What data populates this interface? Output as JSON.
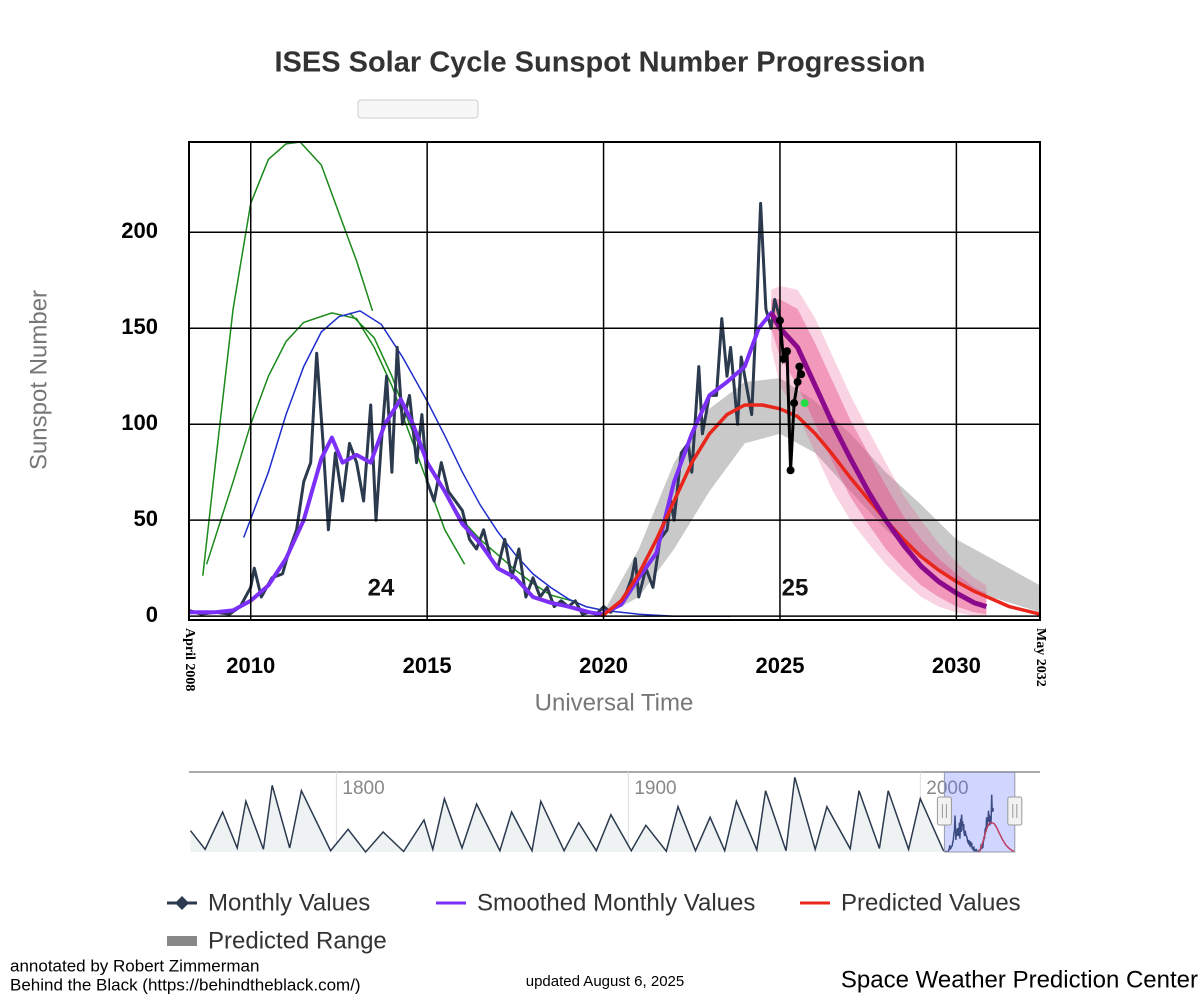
{
  "chart_data": {
    "type": "line",
    "title": "ISES Solar Cycle Sunspot Number Progression",
    "x_label": "Universal Time",
    "y_label": "Sunspot Number",
    "xlim": [
      2008.25,
      2032.37
    ],
    "xlim_labels": [
      "April 2008",
      "May 2032"
    ],
    "ylim": [
      -2,
      247
    ],
    "xticks": [
      2010,
      2015,
      2020,
      2025,
      2030
    ],
    "yticks": [
      0,
      50,
      100,
      150,
      200
    ],
    "grid": true,
    "cycle_labels": [
      "24",
      "25"
    ],
    "series": [
      {
        "name": "Monthly Values",
        "color": "#2b3a4e",
        "x": [
          2008.25,
          2008.6,
          2009.0,
          2009.4,
          2009.7,
          2010.0,
          2010.1,
          2010.3,
          2010.6,
          2010.9,
          2011.1,
          2011.3,
          2011.5,
          2011.7,
          2011.87,
          2012.05,
          2012.2,
          2012.4,
          2012.6,
          2012.8,
          2013.0,
          2013.2,
          2013.4,
          2013.55,
          2013.7,
          2013.85,
          2014.0,
          2014.15,
          2014.3,
          2014.5,
          2014.7,
          2014.85,
          2015.0,
          2015.2,
          2015.4,
          2015.6,
          2015.8,
          2016.0,
          2016.2,
          2016.4,
          2016.6,
          2016.8,
          2017.0,
          2017.2,
          2017.4,
          2017.6,
          2017.8,
          2018.0,
          2018.2,
          2018.4,
          2018.6,
          2018.8,
          2019.0,
          2019.2,
          2019.4,
          2019.6,
          2019.8,
          2020.0,
          2020.2,
          2020.4,
          2020.6,
          2020.8,
          2020.9,
          2021.0,
          2021.2,
          2021.4,
          2021.6,
          2021.8,
          2021.9,
          2022.0,
          2022.2,
          2022.4,
          2022.5,
          2022.7,
          2022.8,
          2023.0,
          2023.2,
          2023.35,
          2023.5,
          2023.6,
          2023.8,
          2023.9,
          2024.0,
          2024.2,
          2024.35,
          2024.45,
          2024.6,
          2024.75,
          2024.85,
          2025.0
        ],
        "values": [
          3,
          1,
          2,
          1,
          5,
          15,
          25,
          10,
          20,
          22,
          35,
          45,
          70,
          80,
          137,
          90,
          45,
          85,
          60,
          90,
          80,
          60,
          110,
          50,
          90,
          125,
          75,
          140,
          100,
          115,
          80,
          105,
          70,
          60,
          80,
          65,
          60,
          55,
          40,
          35,
          45,
          30,
          25,
          40,
          20,
          35,
          10,
          20,
          10,
          15,
          5,
          8,
          5,
          8,
          1,
          2,
          1,
          5,
          2,
          6,
          10,
          20,
          30,
          10,
          25,
          15,
          40,
          45,
          60,
          50,
          85,
          90,
          75,
          130,
          95,
          115,
          115,
          155,
          125,
          140,
          100,
          135,
          125,
          105,
          165,
          215,
          160,
          150,
          165,
          155
        ]
      },
      {
        "name": "Smoothed Monthly Values",
        "color": "#7b2ff7",
        "x": [
          2008.25,
          2009,
          2009.5,
          2010,
          2010.5,
          2011,
          2011.5,
          2012,
          2012.3,
          2012.6,
          2013,
          2013.4,
          2013.8,
          2014.25,
          2014.6,
          2015,
          2015.5,
          2016,
          2016.5,
          2017,
          2017.5,
          2018,
          2018.5,
          2019,
          2019.6,
          2019.95,
          2020.5,
          2021,
          2021.5,
          2022,
          2022.5,
          2023,
          2023.5,
          2024,
          2024.4,
          2024.75,
          2025.0
        ],
        "values": [
          2,
          2,
          3,
          8,
          16,
          30,
          50,
          82,
          93,
          80,
          84,
          80,
          100,
          113,
          100,
          80,
          65,
          48,
          38,
          25,
          20,
          10,
          7,
          5,
          2,
          1,
          6,
          20,
          33,
          70,
          95,
          115,
          122,
          130,
          150,
          158,
          152
        ]
      },
      {
        "name": "Predicted Values",
        "color": "#e8261b",
        "x": [
          2019.95,
          2020.5,
          2021,
          2021.5,
          2022,
          2022.5,
          2023,
          2023.5,
          2024,
          2024.5,
          2025,
          2025.5,
          2026,
          2026.5,
          2027,
          2027.5,
          2028,
          2028.5,
          2029,
          2029.5,
          2030,
          2030.5,
          2031,
          2031.5,
          2032.37
        ],
        "values": [
          0,
          8,
          22,
          40,
          60,
          80,
          95,
          105,
          110,
          110,
          108,
          104,
          95,
          84,
          72,
          61,
          50,
          40,
          31,
          24,
          18,
          13,
          9,
          5,
          1
        ]
      },
      {
        "name": "Predicted Range",
        "color": "#888888",
        "x": [
          2020,
          2021,
          2022,
          2023,
          2024,
          2025,
          2026,
          2027,
          2028,
          2029,
          2030,
          2031,
          2032.37
        ],
        "low": [
          0,
          10,
          35,
          65,
          90,
          95,
          85,
          65,
          45,
          30,
          18,
          10,
          2
        ],
        "high": [
          2,
          35,
          80,
          108,
          122,
          124,
          112,
          95,
          75,
          58,
          40,
          30,
          16
        ]
      }
    ],
    "magenta_prediction": {
      "color": "#8b0a8b",
      "band_color": "#e8508a",
      "x": [
        2024.75,
        2025,
        2025.5,
        2026,
        2026.5,
        2027,
        2027.5,
        2028,
        2028.5,
        2029,
        2029.5,
        2030,
        2030.5,
        2030.85
      ],
      "values": [
        158,
        150,
        140,
        120,
        100,
        82,
        65,
        50,
        37,
        26,
        18,
        12,
        7,
        5
      ],
      "low": [
        150,
        135,
        120,
        100,
        80,
        62,
        48,
        35,
        25,
        16,
        10,
        5,
        2,
        1
      ],
      "high": [
        165,
        165,
        160,
        142,
        122,
        102,
        85,
        68,
        52,
        40,
        30,
        22,
        15,
        12
      ],
      "outer_low": [
        140,
        120,
        105,
        85,
        65,
        50,
        38,
        27,
        18,
        10,
        5,
        2,
        0,
        0
      ],
      "outer_high": [
        170,
        172,
        170,
        155,
        135,
        115,
        97,
        80,
        63,
        50,
        38,
        28,
        20,
        16
      ]
    },
    "annotated_points": {
      "color": "#000000",
      "x": [
        2025.0,
        2025.1,
        2025.2,
        2025.3,
        2025.4,
        2025.5,
        2025.55,
        2025.6
      ],
      "values": [
        154,
        134,
        138,
        76,
        111,
        122,
        130,
        126
      ]
    },
    "latest_point": {
      "color": "#22dd44",
      "x": 2025.7,
      "value": 111
    },
    "annotation_curves": [
      {
        "color": "#1a8a1a",
        "x": [
          2008.64,
          2009,
          2009.5,
          2010,
          2010.5,
          2011,
          2011.4,
          2012,
          2012.5,
          2013,
          2013.45
        ],
        "values": [
          21,
          80,
          160,
          215,
          238,
          246,
          247,
          235,
          210,
          185,
          159
        ]
      },
      {
        "color": "#1a8a1a",
        "x": [
          2008.75,
          2009.5,
          2010,
          2010.5,
          2011,
          2011.5,
          2012.3,
          2013,
          2013.5,
          2014,
          2014.5,
          2015,
          2015.5,
          2016.06
        ],
        "values": [
          27,
          70,
          100,
          125,
          143,
          153,
          158,
          155,
          140,
          120,
          95,
          70,
          45,
          27
        ]
      },
      {
        "color": "#1a8a1a",
        "x": [
          2012.8,
          2013.5,
          2014,
          2014.5,
          2015,
          2015.5,
          2016,
          2016.5,
          2017,
          2017.5,
          2018,
          2018.5,
          2019.1
        ],
        "values": [
          158,
          145,
          125,
          100,
          80,
          65,
          50,
          40,
          32,
          24,
          17,
          11,
          8
        ]
      },
      {
        "color": "#1f2fcc",
        "x": [
          2009.8,
          2010.5,
          2011,
          2011.5,
          2012,
          2012.5,
          2013.1,
          2013.7,
          2014.3,
          2015,
          2015.5,
          2016,
          2016.5,
          2017,
          2017.5,
          2018,
          2018.5,
          2019,
          2019.5,
          2020,
          2021,
          2022,
          2023.6
        ],
        "values": [
          41,
          75,
          105,
          130,
          148,
          156,
          159,
          152,
          135,
          112,
          94,
          75,
          58,
          44,
          32,
          22,
          15,
          9,
          5,
          3,
          1,
          0,
          0
        ]
      }
    ],
    "navigator": {
      "navlim": [
        1749.5,
        2041
      ],
      "nav_ylim": [
        0,
        300
      ],
      "navticks": [
        1800,
        1900,
        2000
      ],
      "color": "#2b3a4e",
      "x": [
        1750,
        1755,
        1761,
        1766,
        1769,
        1775,
        1778,
        1784,
        1788,
        1798,
        1804,
        1810,
        1816,
        1823,
        1830,
        1833,
        1837,
        1843,
        1848,
        1856,
        1860,
        1867,
        1870,
        1878,
        1883,
        1889,
        1894,
        1901,
        1906,
        1913,
        1917,
        1923,
        1928,
        1933,
        1937,
        1944,
        1947,
        1954,
        1957,
        1964,
        1968,
        1976,
        1979,
        1986,
        1989,
        1996,
        2000,
        2008
      ],
      "values": [
        80,
        10,
        150,
        15,
        190,
        10,
        250,
        15,
        230,
        5,
        85,
        0,
        75,
        2,
        120,
        10,
        200,
        15,
        180,
        5,
        150,
        5,
        190,
        5,
        110,
        5,
        140,
        5,
        100,
        3,
        170,
        5,
        130,
        5,
        190,
        8,
        230,
        5,
        280,
        10,
        170,
        12,
        230,
        13,
        230,
        10,
        200,
        3
      ]
    },
    "annotated_by": "annotated by Robert Zimmerman",
    "source_site": "Behind the Black (https://behindtheblack.com/)",
    "updated": "updated August 6, 2025",
    "credit": "Space Weather Prediction Center"
  }
}
